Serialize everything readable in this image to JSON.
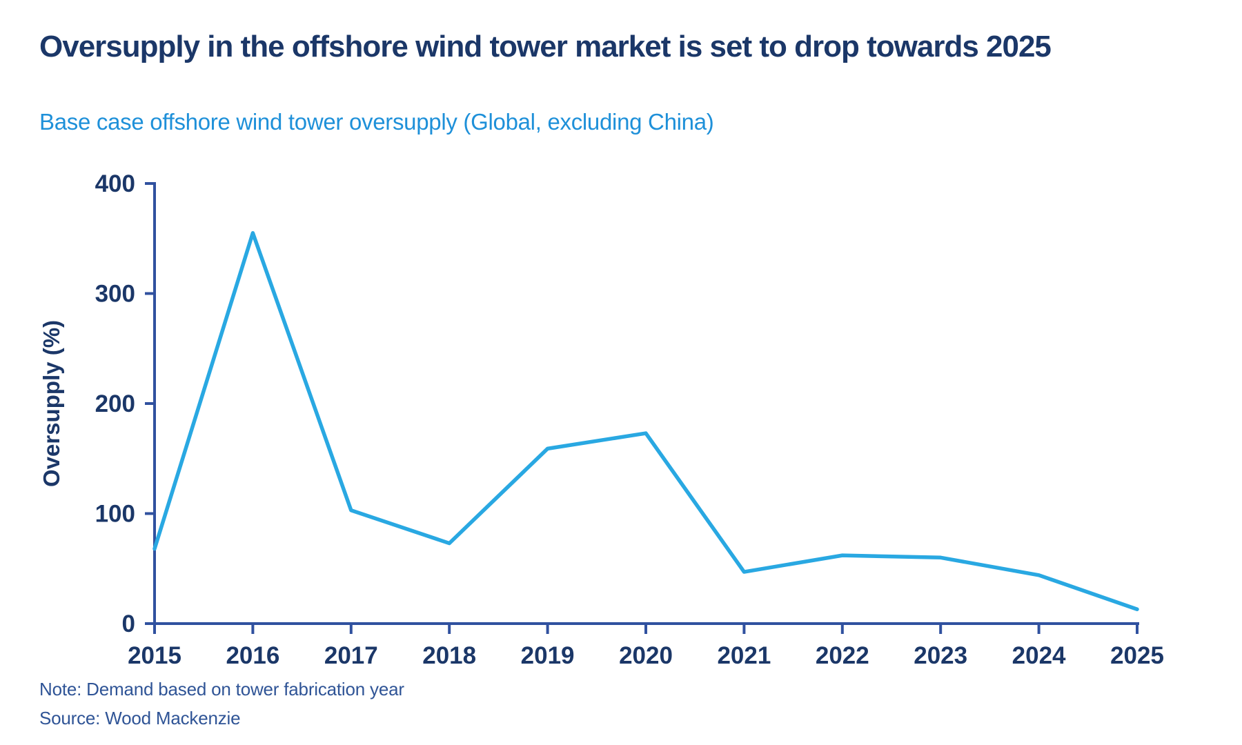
{
  "header": {
    "title": "Oversupply in the offshore wind tower market is set to drop towards 2025",
    "subtitle": "Base case offshore wind tower oversupply (Global, excluding China)"
  },
  "footer": {
    "note": "Note: Demand based on tower fabrication year",
    "source": "Source: Wood Mackenzie"
  },
  "colors": {
    "title_navy": "#1B3768",
    "subtitle_blue": "#1E90D9",
    "axis_blue": "#30519F",
    "line_blue": "#29A8E2",
    "footer_blue": "#2F5496"
  },
  "chart_data": {
    "type": "line",
    "title": "Base case offshore wind tower oversupply (Global, excluding China)",
    "categories": [
      "2015",
      "2016",
      "2017",
      "2018",
      "2019",
      "2020",
      "2021",
      "2022",
      "2023",
      "2024",
      "2025"
    ],
    "series": [
      {
        "name": "Base case offshore wind tower oversupply (Global, excluding China)",
        "values": [
          68,
          355,
          103,
          73,
          159,
          173,
          47,
          62,
          60,
          44,
          13
        ]
      }
    ],
    "xlabel": "",
    "ylabel": "Oversupply (%)",
    "ylim": [
      0,
      400
    ],
    "yticks": [
      0,
      100,
      200,
      300,
      400
    ],
    "grid": false,
    "legend_position": "none"
  }
}
